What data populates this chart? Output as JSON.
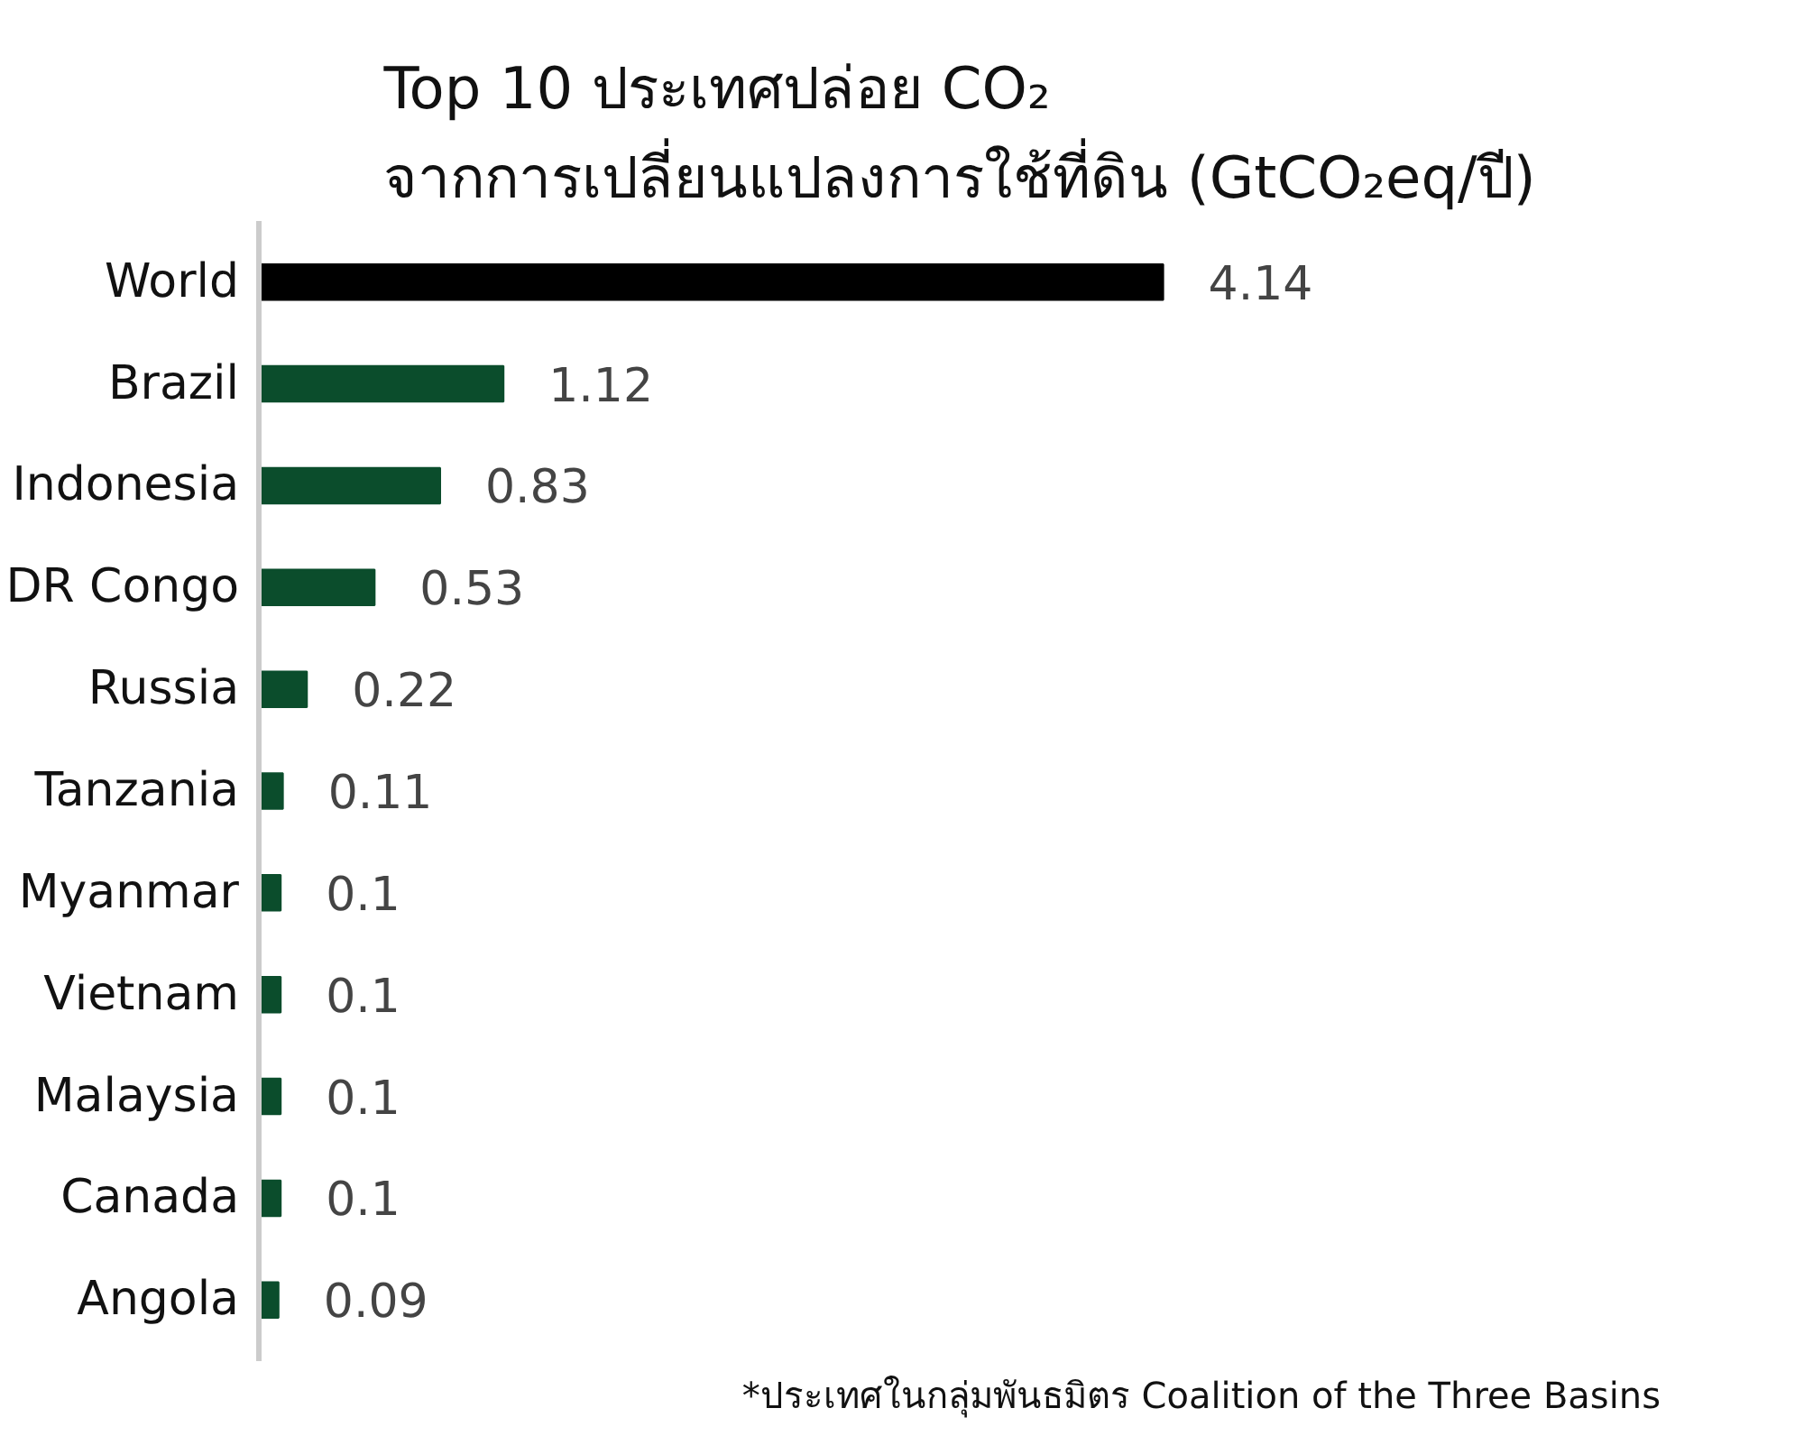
{
  "chart_data": {
    "type": "bar",
    "orientation": "horizontal",
    "title": "Top 10 ประเทศปล่อย CO₂\nจากการเปลี่ยนแปลงการใช้ที่ดิน (GtCO₂eq/ปี)",
    "categories": [
      "World",
      "Brazil",
      "Indonesia",
      "DR Congo",
      "Russia",
      "Tanzania",
      "Myanmar",
      "Vietnam",
      "Malaysia",
      "Canada",
      "Angola"
    ],
    "values": [
      4.14,
      1.12,
      0.83,
      0.53,
      0.22,
      0.11,
      0.1,
      0.1,
      0.1,
      0.1,
      0.09
    ],
    "colors": [
      "#000000",
      "#0b4d2c",
      "#0b4d2c",
      "#0b4d2c",
      "#0b4d2c",
      "#0b4d2c",
      "#0b4d2c",
      "#0b4d2c",
      "#0b4d2c",
      "#0b4d2c",
      "#0b4d2c"
    ],
    "data_labels": true,
    "grid": false,
    "annotations": [
      "*ประเทศในกลุ่มพันธมิตร Coalition of the Three Basins"
    ]
  }
}
